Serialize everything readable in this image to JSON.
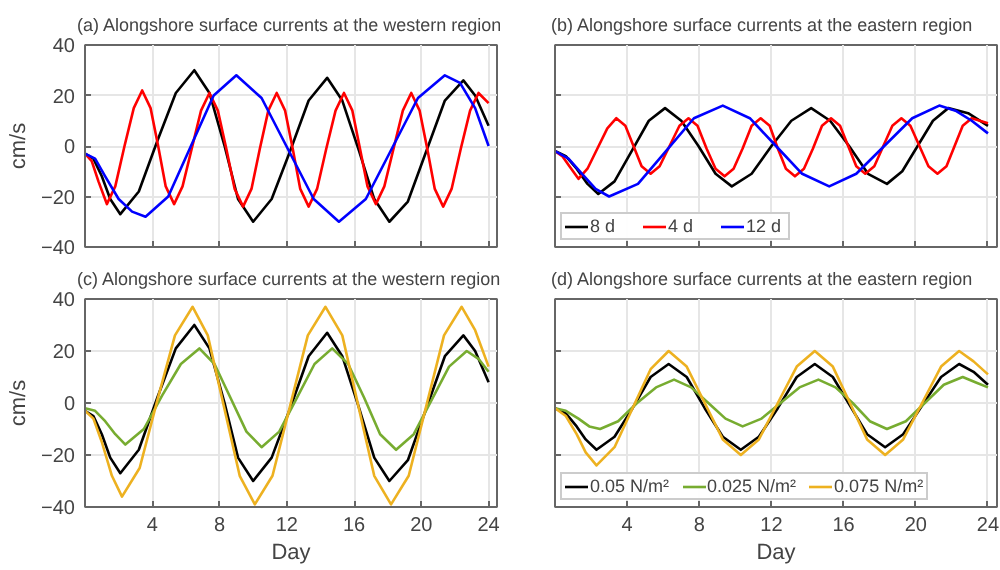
{
  "chart_data": [
    {
      "type": "line",
      "title": "(a) Alongshore surface currents at the western region",
      "ylabel": "cm/s",
      "xlim": [
        0,
        24.5
      ],
      "xticks": [
        4,
        8,
        12,
        16,
        20,
        24
      ],
      "ylim": [
        -40,
        40
      ],
      "yticks": [
        -40,
        -20,
        0,
        20,
        40
      ],
      "grid": true,
      "tick_labels": "y",
      "series": [
        {
          "color": "#000000",
          "x": [
            0,
            0.5,
            1,
            1.5,
            2.1,
            3.2,
            4.3,
            5.4,
            6.5,
            7.4,
            8.3,
            9.1,
            10,
            11.1,
            12.2,
            13.3,
            14.4,
            15.3,
            16.3,
            17.2,
            18.1,
            19.2,
            20.3,
            21.4,
            22.5,
            23.2,
            24
          ],
          "values": [
            -3,
            -5,
            -12,
            -21,
            -27,
            -18,
            2,
            21,
            30,
            21,
            0,
            -21,
            -30,
            -21,
            -2,
            18,
            27,
            18,
            -2,
            -21,
            -30,
            -22,
            -2,
            18,
            26,
            20,
            8
          ]
        },
        {
          "color": "#ff0000",
          "x": [
            0,
            0.4,
            0.8,
            1.3,
            1.8,
            2.35,
            2.9,
            3.4,
            3.9,
            4.35,
            4.8,
            5.3,
            5.8,
            6.35,
            6.9,
            7.4,
            7.9,
            8.4,
            8.9,
            9.4,
            9.9,
            10.4,
            10.9,
            11.4,
            11.9,
            12.35,
            12.8,
            13.3,
            13.8,
            14.35,
            14.9,
            15.4,
            15.9,
            16.35,
            16.8,
            17.3,
            17.8,
            18.35,
            18.9,
            19.4,
            19.9,
            20.35,
            20.8,
            21.3,
            21.8,
            22.35,
            22.9,
            23.4,
            24
          ],
          "values": [
            -3,
            -6,
            -14,
            -23,
            -16,
            0,
            15,
            22,
            15,
            0,
            -16,
            -23,
            -16,
            -1,
            14,
            21,
            14,
            -1,
            -17,
            -24,
            -17,
            -1,
            14,
            21,
            14,
            -1,
            -17,
            -24,
            -17,
            -1,
            14,
            21,
            14,
            -1,
            -16,
            -23,
            -16,
            -1,
            14,
            21,
            14,
            -1,
            -17,
            -24,
            -17,
            -1,
            14,
            21,
            17
          ]
        },
        {
          "color": "#0000ff",
          "x": [
            0,
            0.6,
            1.2,
            2,
            2.8,
            3.6,
            4.95,
            6.3,
            7.65,
            9,
            10.5,
            12.05,
            13.6,
            15.1,
            16.7,
            18.25,
            19.8,
            21.4,
            22.3,
            23.2,
            24
          ],
          "values": [
            -3,
            -5,
            -12,
            -21,
            -26,
            -28,
            -20,
            0,
            20,
            28,
            19,
            -1,
            -21,
            -30,
            -21,
            -1,
            19,
            28,
            25,
            15,
            0
          ]
        }
      ]
    },
    {
      "type": "line",
      "title": "(b) Alongshore surface currents at the eastern region",
      "xlim": [
        0,
        24.5
      ],
      "xticks": [
        4,
        8,
        12,
        16,
        20,
        24
      ],
      "ylim": [
        -40,
        40
      ],
      "yticks": [
        -40,
        -20,
        0,
        20,
        40
      ],
      "grid": true,
      "tick_labels": false,
      "legend": "bottom",
      "series": [
        {
          "name": "8 d",
          "color": "#000000",
          "x": [
            0,
            0.6,
            1.2,
            1.8,
            2.4,
            3.3,
            4.25,
            5.2,
            6.1,
            7,
            7.95,
            8.9,
            9.8,
            10.9,
            12,
            13.1,
            14.2,
            15.25,
            16.3,
            17.35,
            18.4,
            19.25,
            20.1,
            20.95,
            21.8,
            22.9,
            24
          ],
          "values": [
            -2,
            -4,
            -9,
            -15,
            -19,
            -14,
            -2,
            10,
            15,
            10,
            0,
            -11,
            -16,
            -11,
            0,
            10,
            15,
            10,
            0,
            -11,
            -15,
            -10,
            0,
            10,
            15,
            13,
            8
          ]
        },
        {
          "name": "4 d",
          "color": "#ff0000",
          "x": [
            0,
            0.4,
            0.8,
            1.3,
            1.8,
            2.35,
            2.9,
            3.4,
            3.9,
            4.35,
            4.8,
            5.3,
            5.8,
            6.35,
            6.9,
            7.4,
            7.9,
            8.4,
            8.9,
            9.4,
            9.9,
            10.4,
            10.9,
            11.4,
            11.9,
            12.35,
            12.8,
            13.3,
            13.8,
            14.3,
            14.8,
            15.3,
            15.8,
            16.25,
            16.7,
            17.2,
            17.7,
            18.2,
            18.7,
            19.2,
            19.7,
            20.2,
            20.7,
            21.2,
            21.7,
            22.15,
            22.6,
            23.1,
            24
          ],
          "values": [
            -2,
            -4,
            -8,
            -13,
            -9,
            -1,
            7,
            11,
            8,
            0,
            -8,
            -11,
            -8,
            0,
            8,
            11,
            8,
            -1,
            -9,
            -12,
            -9,
            -1,
            8,
            11,
            8,
            -1,
            -9,
            -12,
            -9,
            -1,
            8,
            11,
            8,
            0,
            -8,
            -11,
            -8,
            0,
            8,
            11,
            8,
            0,
            -8,
            -11,
            -8,
            0,
            8,
            11,
            9
          ]
        },
        {
          "name": "12 d",
          "color": "#0000ff",
          "x": [
            0,
            0.75,
            1.5,
            2.25,
            3,
            4.6,
            6.15,
            7.7,
            9.3,
            10.8,
            12.25,
            13.7,
            15.2,
            16.7,
            18.25,
            19.8,
            21.3,
            22.2,
            23.1,
            24
          ],
          "values": [
            -2,
            -5,
            -11,
            -17,
            -20,
            -15,
            -2,
            11,
            16,
            11,
            0,
            -11,
            -16,
            -11,
            0,
            11,
            16,
            14,
            10,
            5
          ]
        }
      ]
    },
    {
      "type": "line",
      "title": "(c) Alongshore surface currents at the western region",
      "xlabel": "Day",
      "ylabel": "cm/s",
      "xlim": [
        0,
        24.5
      ],
      "xticks": [
        4,
        8,
        12,
        16,
        20,
        24
      ],
      "ylim": [
        -40,
        40
      ],
      "yticks": [
        -40,
        -20,
        0,
        20,
        40
      ],
      "grid": true,
      "series": [
        {
          "color": "#000000",
          "x": [
            0,
            0.5,
            1,
            1.5,
            2.1,
            3.2,
            4.3,
            5.4,
            6.5,
            7.4,
            8.3,
            9.1,
            10,
            11.1,
            12.2,
            13.3,
            14.4,
            15.3,
            16.3,
            17.2,
            18.1,
            19.2,
            20.3,
            21.4,
            22.5,
            23.2,
            24
          ],
          "values": [
            -3,
            -5,
            -12,
            -21,
            -27,
            -18,
            2,
            21,
            30,
            21,
            0,
            -21,
            -30,
            -21,
            -2,
            18,
            27,
            18,
            -2,
            -21,
            -30,
            -22,
            -2,
            18,
            26,
            20,
            8
          ]
        },
        {
          "color": "#77ac30",
          "x": [
            0,
            0.6,
            1.2,
            1.8,
            2.4,
            3.5,
            4.6,
            5.7,
            6.8,
            7.7,
            8.65,
            9.6,
            10.5,
            11.55,
            12.6,
            13.65,
            14.7,
            15.65,
            16.6,
            17.55,
            18.5,
            19.55,
            20.6,
            21.65,
            22.7,
            23.4,
            24
          ],
          "values": [
            -2,
            -3,
            -7,
            -12,
            -16,
            -10,
            3,
            15,
            21,
            15,
            2,
            -11,
            -17,
            -11,
            2,
            15,
            21,
            15,
            2,
            -12,
            -18,
            -12,
            1,
            14,
            20,
            17,
            12
          ]
        },
        {
          "color": "#edb120",
          "x": [
            0,
            0.5,
            1,
            1.6,
            2.2,
            3.25,
            4.3,
            5.35,
            6.4,
            7.3,
            8.25,
            9.2,
            10.1,
            11.15,
            12.2,
            13.25,
            14.3,
            15.3,
            16.25,
            17.2,
            18.2,
            19.25,
            20.3,
            21.35,
            22.4,
            23.2,
            24
          ],
          "values": [
            -3,
            -6,
            -15,
            -28,
            -36,
            -25,
            1,
            26,
            37,
            26,
            -1,
            -28,
            -39,
            -28,
            -1,
            26,
            37,
            26,
            -1,
            -28,
            -39,
            -28,
            -1,
            26,
            37,
            28,
            14
          ]
        }
      ]
    },
    {
      "type": "line",
      "title": "(d) Alongshore surface currents at the eastern region",
      "xlabel": "Day",
      "xlim": [
        0,
        24.5
      ],
      "xticks": [
        4,
        8,
        12,
        16,
        20,
        24
      ],
      "ylim": [
        -40,
        40
      ],
      "yticks": [
        -40,
        -20,
        0,
        20,
        40
      ],
      "grid": true,
      "tick_labels": "x",
      "legend": "bottom",
      "series": [
        {
          "name": "0.05 N/m²",
          "color": "#000000",
          "x": [
            0,
            0.6,
            1.2,
            1.7,
            2.3,
            3.3,
            4.3,
            5.3,
            6.3,
            7.3,
            8.3,
            9.3,
            10.3,
            11.3,
            12.35,
            13.4,
            14.4,
            15.4,
            16.35,
            17.3,
            18.3,
            19.3,
            20.35,
            21.4,
            22.4,
            23.2,
            24
          ],
          "values": [
            -2,
            -4,
            -9,
            -14,
            -18,
            -13,
            -2,
            10,
            15,
            10,
            -2,
            -13,
            -18,
            -13,
            -2,
            10,
            15,
            10,
            -1,
            -12,
            -17,
            -12,
            -1,
            10,
            15,
            12,
            7
          ]
        },
        {
          "name": "0.025 N/m²",
          "color": "#77ac30",
          "x": [
            0,
            0.6,
            1.3,
            1.9,
            2.5,
            3.5,
            4.55,
            5.6,
            6.6,
            7.55,
            8.5,
            9.45,
            10.4,
            11.45,
            12.5,
            13.55,
            14.6,
            15.55,
            16.5,
            17.45,
            18.4,
            19.45,
            20.5,
            21.55,
            22.6,
            23.3,
            24
          ],
          "values": [
            -2,
            -3,
            -6,
            -9,
            -10,
            -7,
            0,
            6,
            9,
            6,
            0,
            -6,
            -9,
            -6,
            0,
            6,
            9,
            6,
            0,
            -7,
            -10,
            -7,
            0,
            7,
            10,
            8,
            6
          ]
        },
        {
          "name": "0.075 N/m²",
          "color": "#edb120",
          "x": [
            0,
            0.6,
            1.2,
            1.7,
            2.3,
            3.3,
            4.3,
            5.3,
            6.3,
            7.3,
            8.3,
            9.3,
            10.3,
            11.3,
            12.35,
            13.4,
            14.4,
            15.4,
            16.35,
            17.3,
            18.3,
            19.3,
            20.35,
            21.4,
            22.4,
            23.2,
            24
          ],
          "values": [
            -2,
            -5,
            -12,
            -19,
            -24,
            -17,
            -2,
            13,
            20,
            14,
            0,
            -14,
            -20,
            -14,
            0,
            14,
            20,
            14,
            0,
            -14,
            -20,
            -14,
            0,
            14,
            20,
            16,
            11
          ]
        }
      ]
    }
  ]
}
